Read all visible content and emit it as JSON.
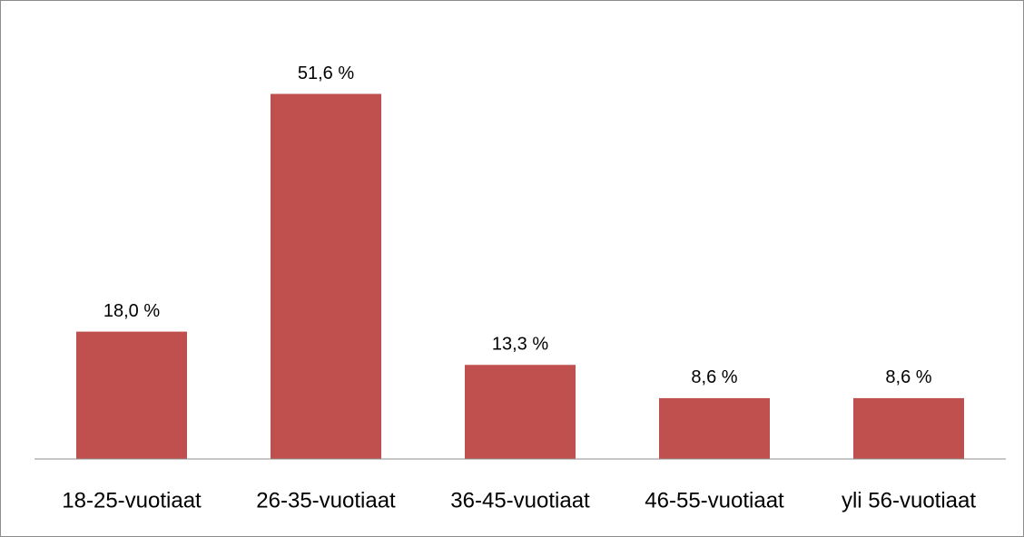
{
  "chart_data": {
    "type": "bar",
    "categories": [
      "18-25-vuotiaat",
      "26-35-vuotiaat",
      "36-45-vuotiaat",
      "46-55-vuotiaat",
      "yli 56-vuotiaat"
    ],
    "values": [
      18.0,
      51.6,
      13.3,
      8.6,
      8.6
    ],
    "value_labels": [
      "18,0 %",
      "51,6 %",
      "13,3 %",
      "8,6 %",
      "8,6 %"
    ],
    "color": "#c0504d",
    "ylim": [
      0,
      60
    ]
  }
}
